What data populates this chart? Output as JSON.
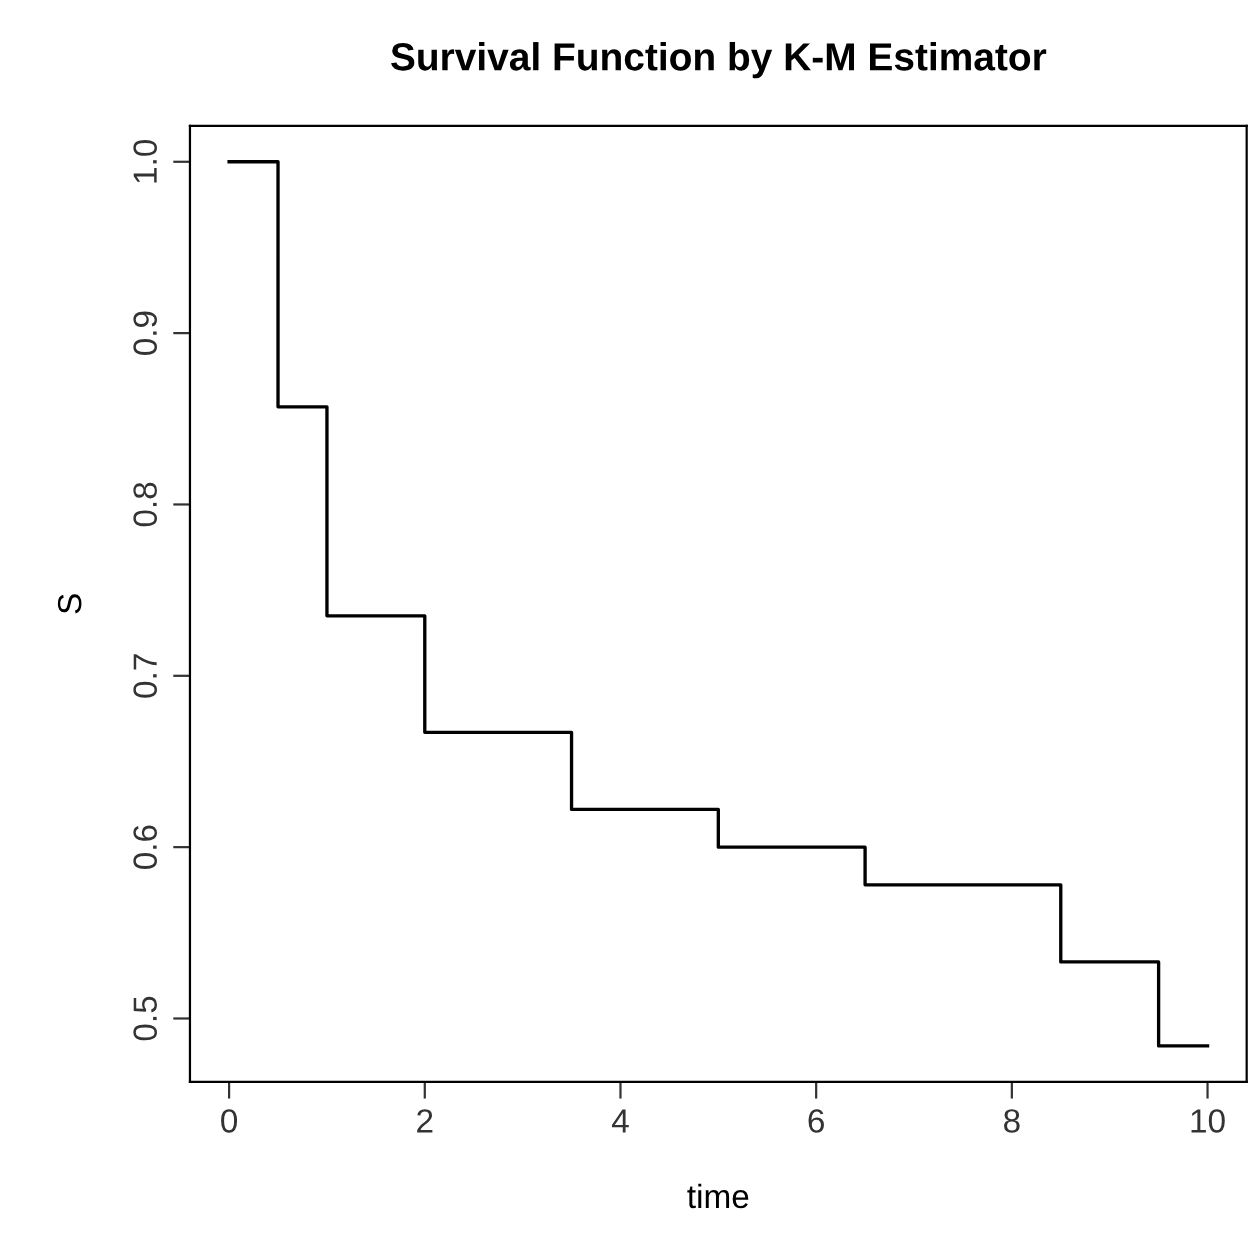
{
  "chart_data": {
    "type": "step",
    "title": "Survival Function by K-M Estimator",
    "xlabel": "time",
    "ylabel": "S",
    "x": [
      0,
      0.5,
      1,
      2,
      3.5,
      5,
      6.5,
      8.5,
      9.5,
      10
    ],
    "series": [
      {
        "color": "#000000",
        "values": [
          1.0,
          0.857,
          0.735,
          0.667,
          0.622,
          0.6,
          0.578,
          0.533,
          0.484,
          0.484
        ]
      }
    ],
    "xlim": [
      -0.4,
      10.4
    ],
    "ylim": [
      0.463,
      1.021
    ],
    "xticks": [
      0,
      2,
      4,
      6,
      8,
      10
    ],
    "yticks": [
      0.5,
      0.6,
      0.7,
      0.8,
      0.9,
      {
        "value": 1,
        "label": "1.0"
      }
    ],
    "grid": false,
    "marker": "none",
    "line_style": "solid"
  }
}
